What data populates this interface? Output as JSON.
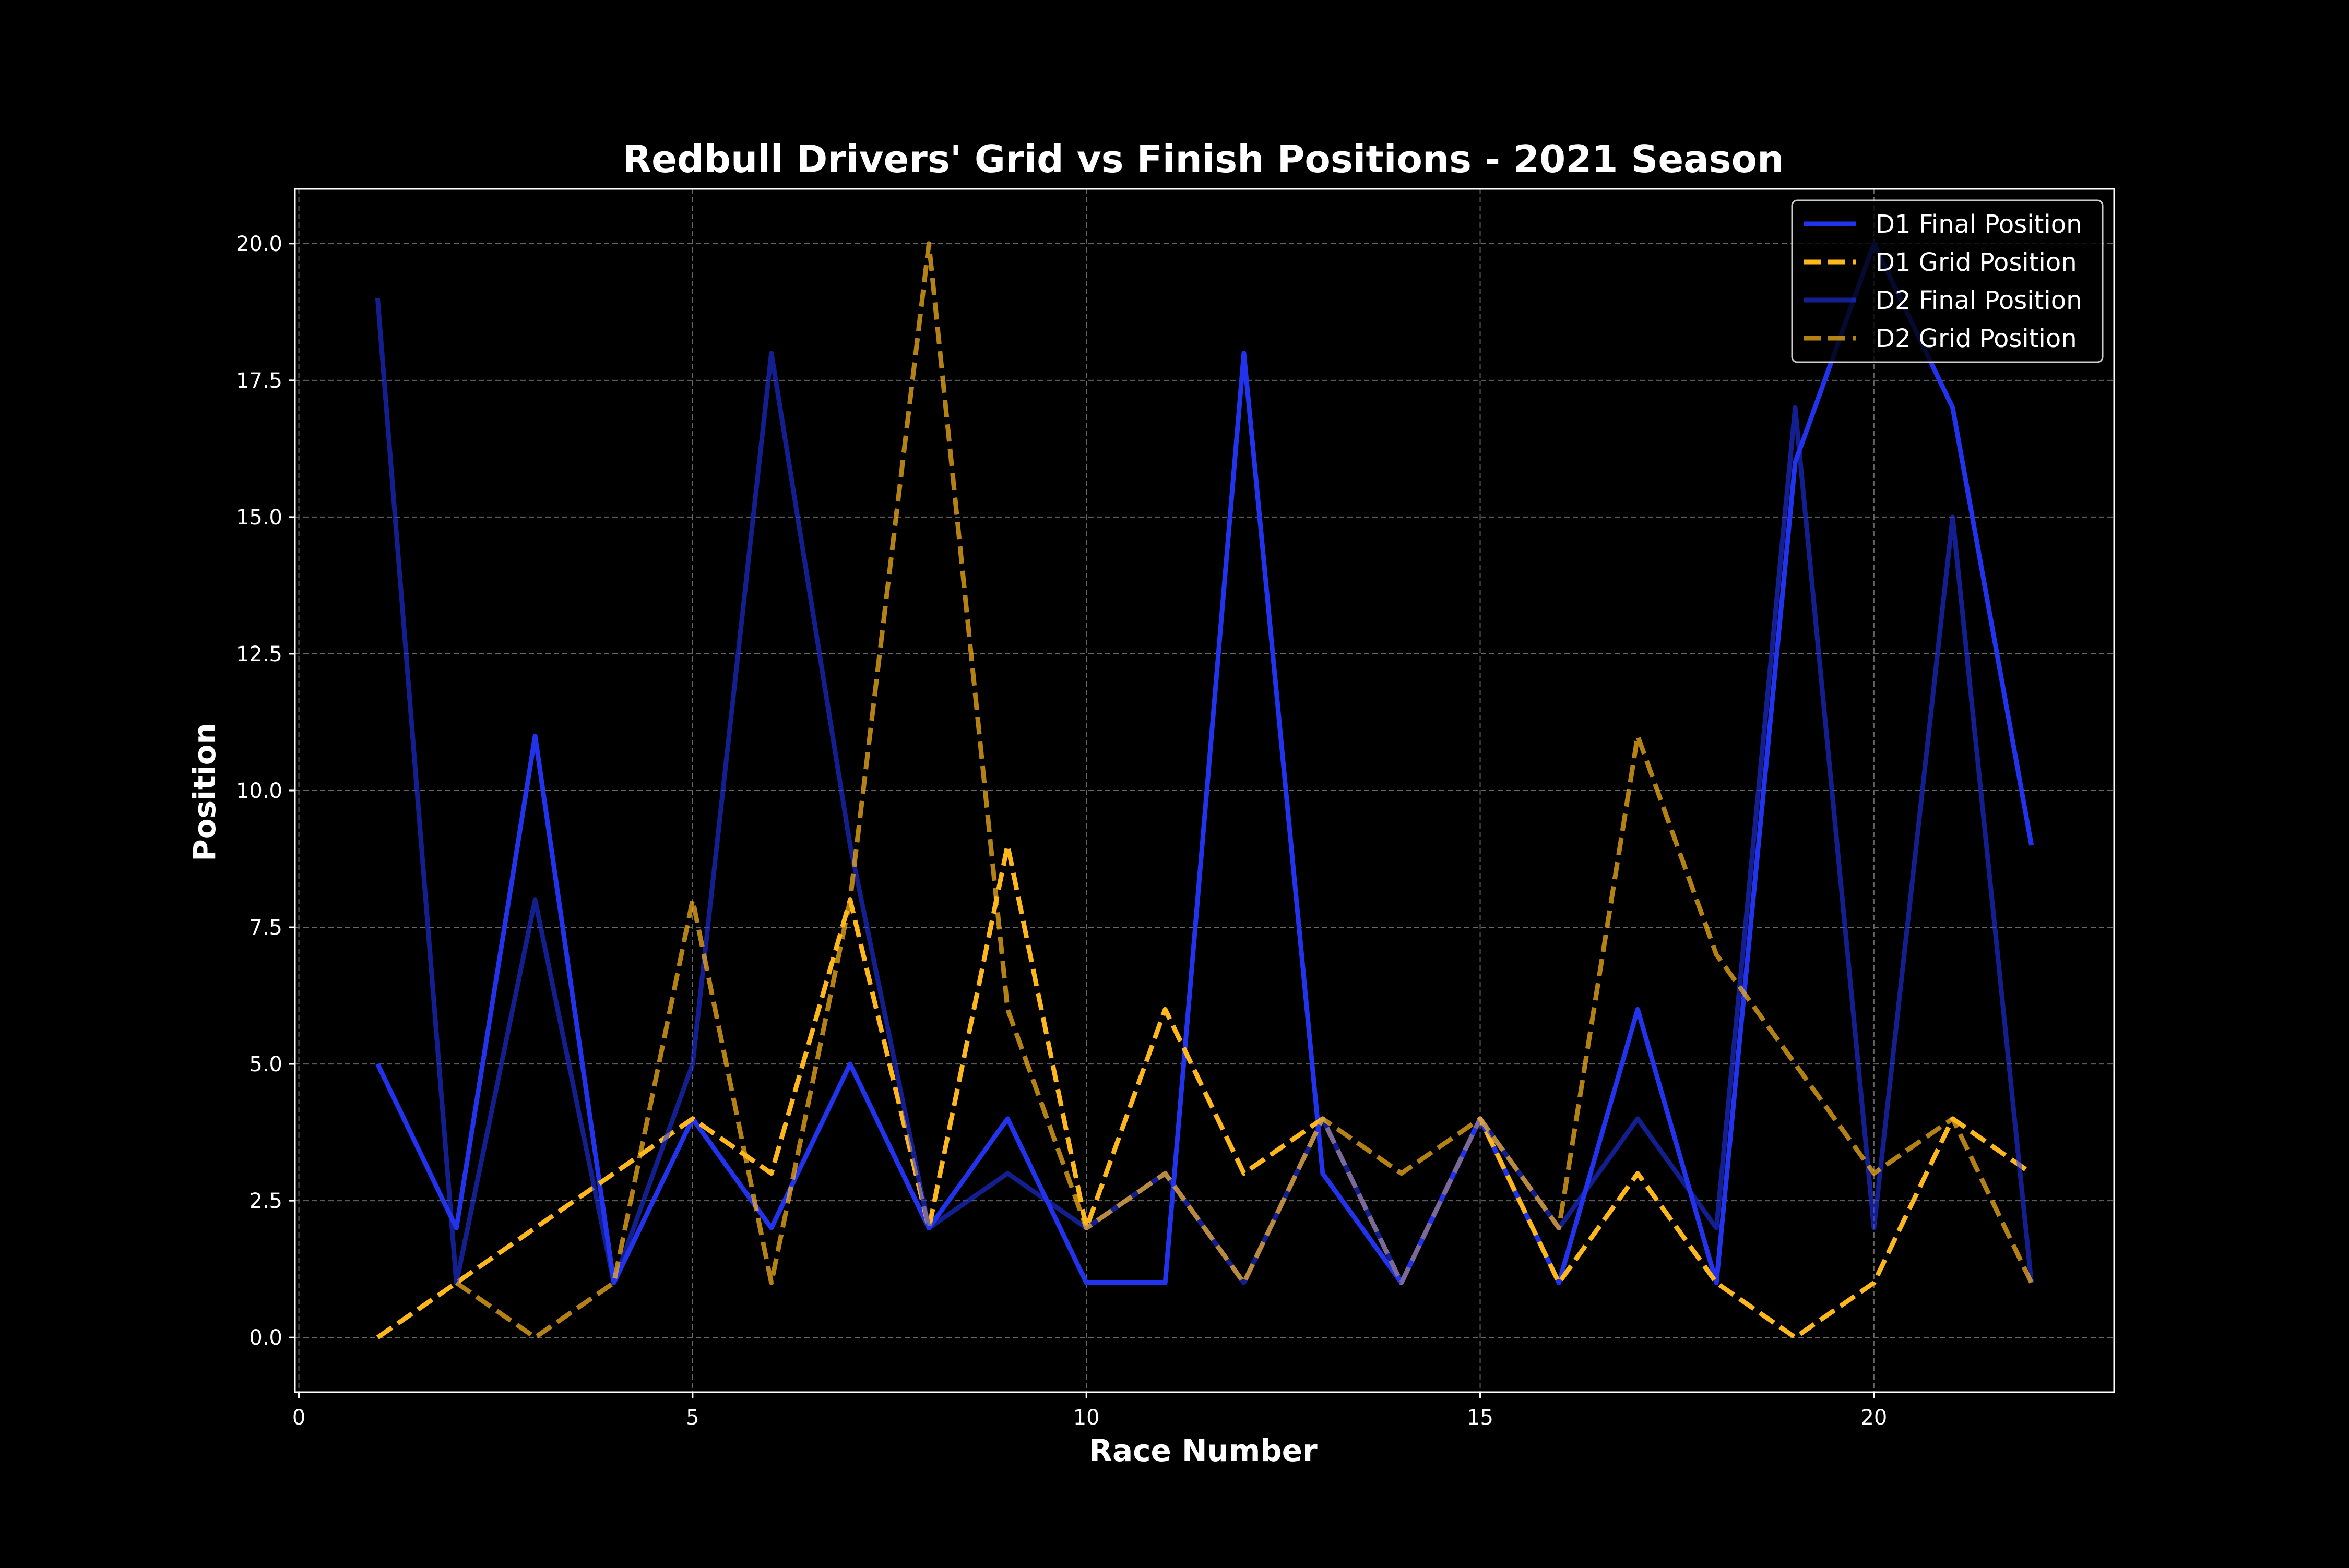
{
  "chart_data": {
    "type": "line",
    "title": "Redbull Drivers' Grid vs Finish Positions - 2021 Season",
    "xlabel": "Race Number",
    "ylabel": "Position",
    "xlim": [
      -0.05,
      23.05
    ],
    "ylim": [
      -1.0,
      21.0
    ],
    "xticks": [
      0,
      5,
      10,
      15,
      20
    ],
    "xtick_labels": [
      "0",
      "5",
      "10",
      "15",
      "20"
    ],
    "yticks": [
      0,
      2.5,
      5,
      7.5,
      10,
      12.5,
      15,
      17.5,
      20
    ],
    "ytick_labels": [
      "0.0",
      "2.5",
      "5.0",
      "7.5",
      "10.0",
      "12.5",
      "15.0",
      "17.5",
      "20.0"
    ],
    "grid": true,
    "legend_position": "top-right",
    "x": [
      1,
      2,
      3,
      4,
      5,
      6,
      7,
      8,
      9,
      10,
      11,
      12,
      13,
      14,
      15,
      16,
      17,
      18,
      19,
      20,
      21,
      22
    ],
    "series": [
      {
        "name": "D1 Final Position",
        "color": "#2233ee",
        "style": "solid",
        "opacity": 1.0,
        "values": [
          5,
          2,
          11,
          1,
          4,
          2,
          5,
          2,
          4,
          1,
          1,
          18,
          3,
          1,
          4,
          1,
          6,
          1,
          16,
          20,
          17,
          9
        ]
      },
      {
        "name": "D1 Grid Position",
        "color": "#ffb81c",
        "style": "dashed",
        "opacity": 1.0,
        "values": [
          0,
          1,
          2,
          3,
          4,
          3,
          8,
          2,
          9,
          2,
          6,
          3,
          4,
          1,
          4,
          1,
          3,
          1,
          0,
          1,
          4,
          3
        ]
      },
      {
        "name": "D2 Final Position",
        "color": "#2233ee",
        "style": "solid",
        "opacity": 0.6,
        "values": [
          19,
          1,
          8,
          1,
          5,
          18,
          9,
          2,
          3,
          2,
          3,
          1,
          4,
          1,
          4,
          2,
          4,
          2,
          17,
          2,
          15,
          1
        ]
      },
      {
        "name": "D2 Grid Position",
        "color": "#ffb81c",
        "style": "dashed",
        "opacity": 0.7,
        "values": [
          null,
          1,
          0,
          1,
          8,
          1,
          8,
          20,
          6,
          2,
          3,
          1,
          4,
          3,
          4,
          2,
          11,
          7,
          5,
          3,
          4,
          1
        ]
      }
    ]
  }
}
